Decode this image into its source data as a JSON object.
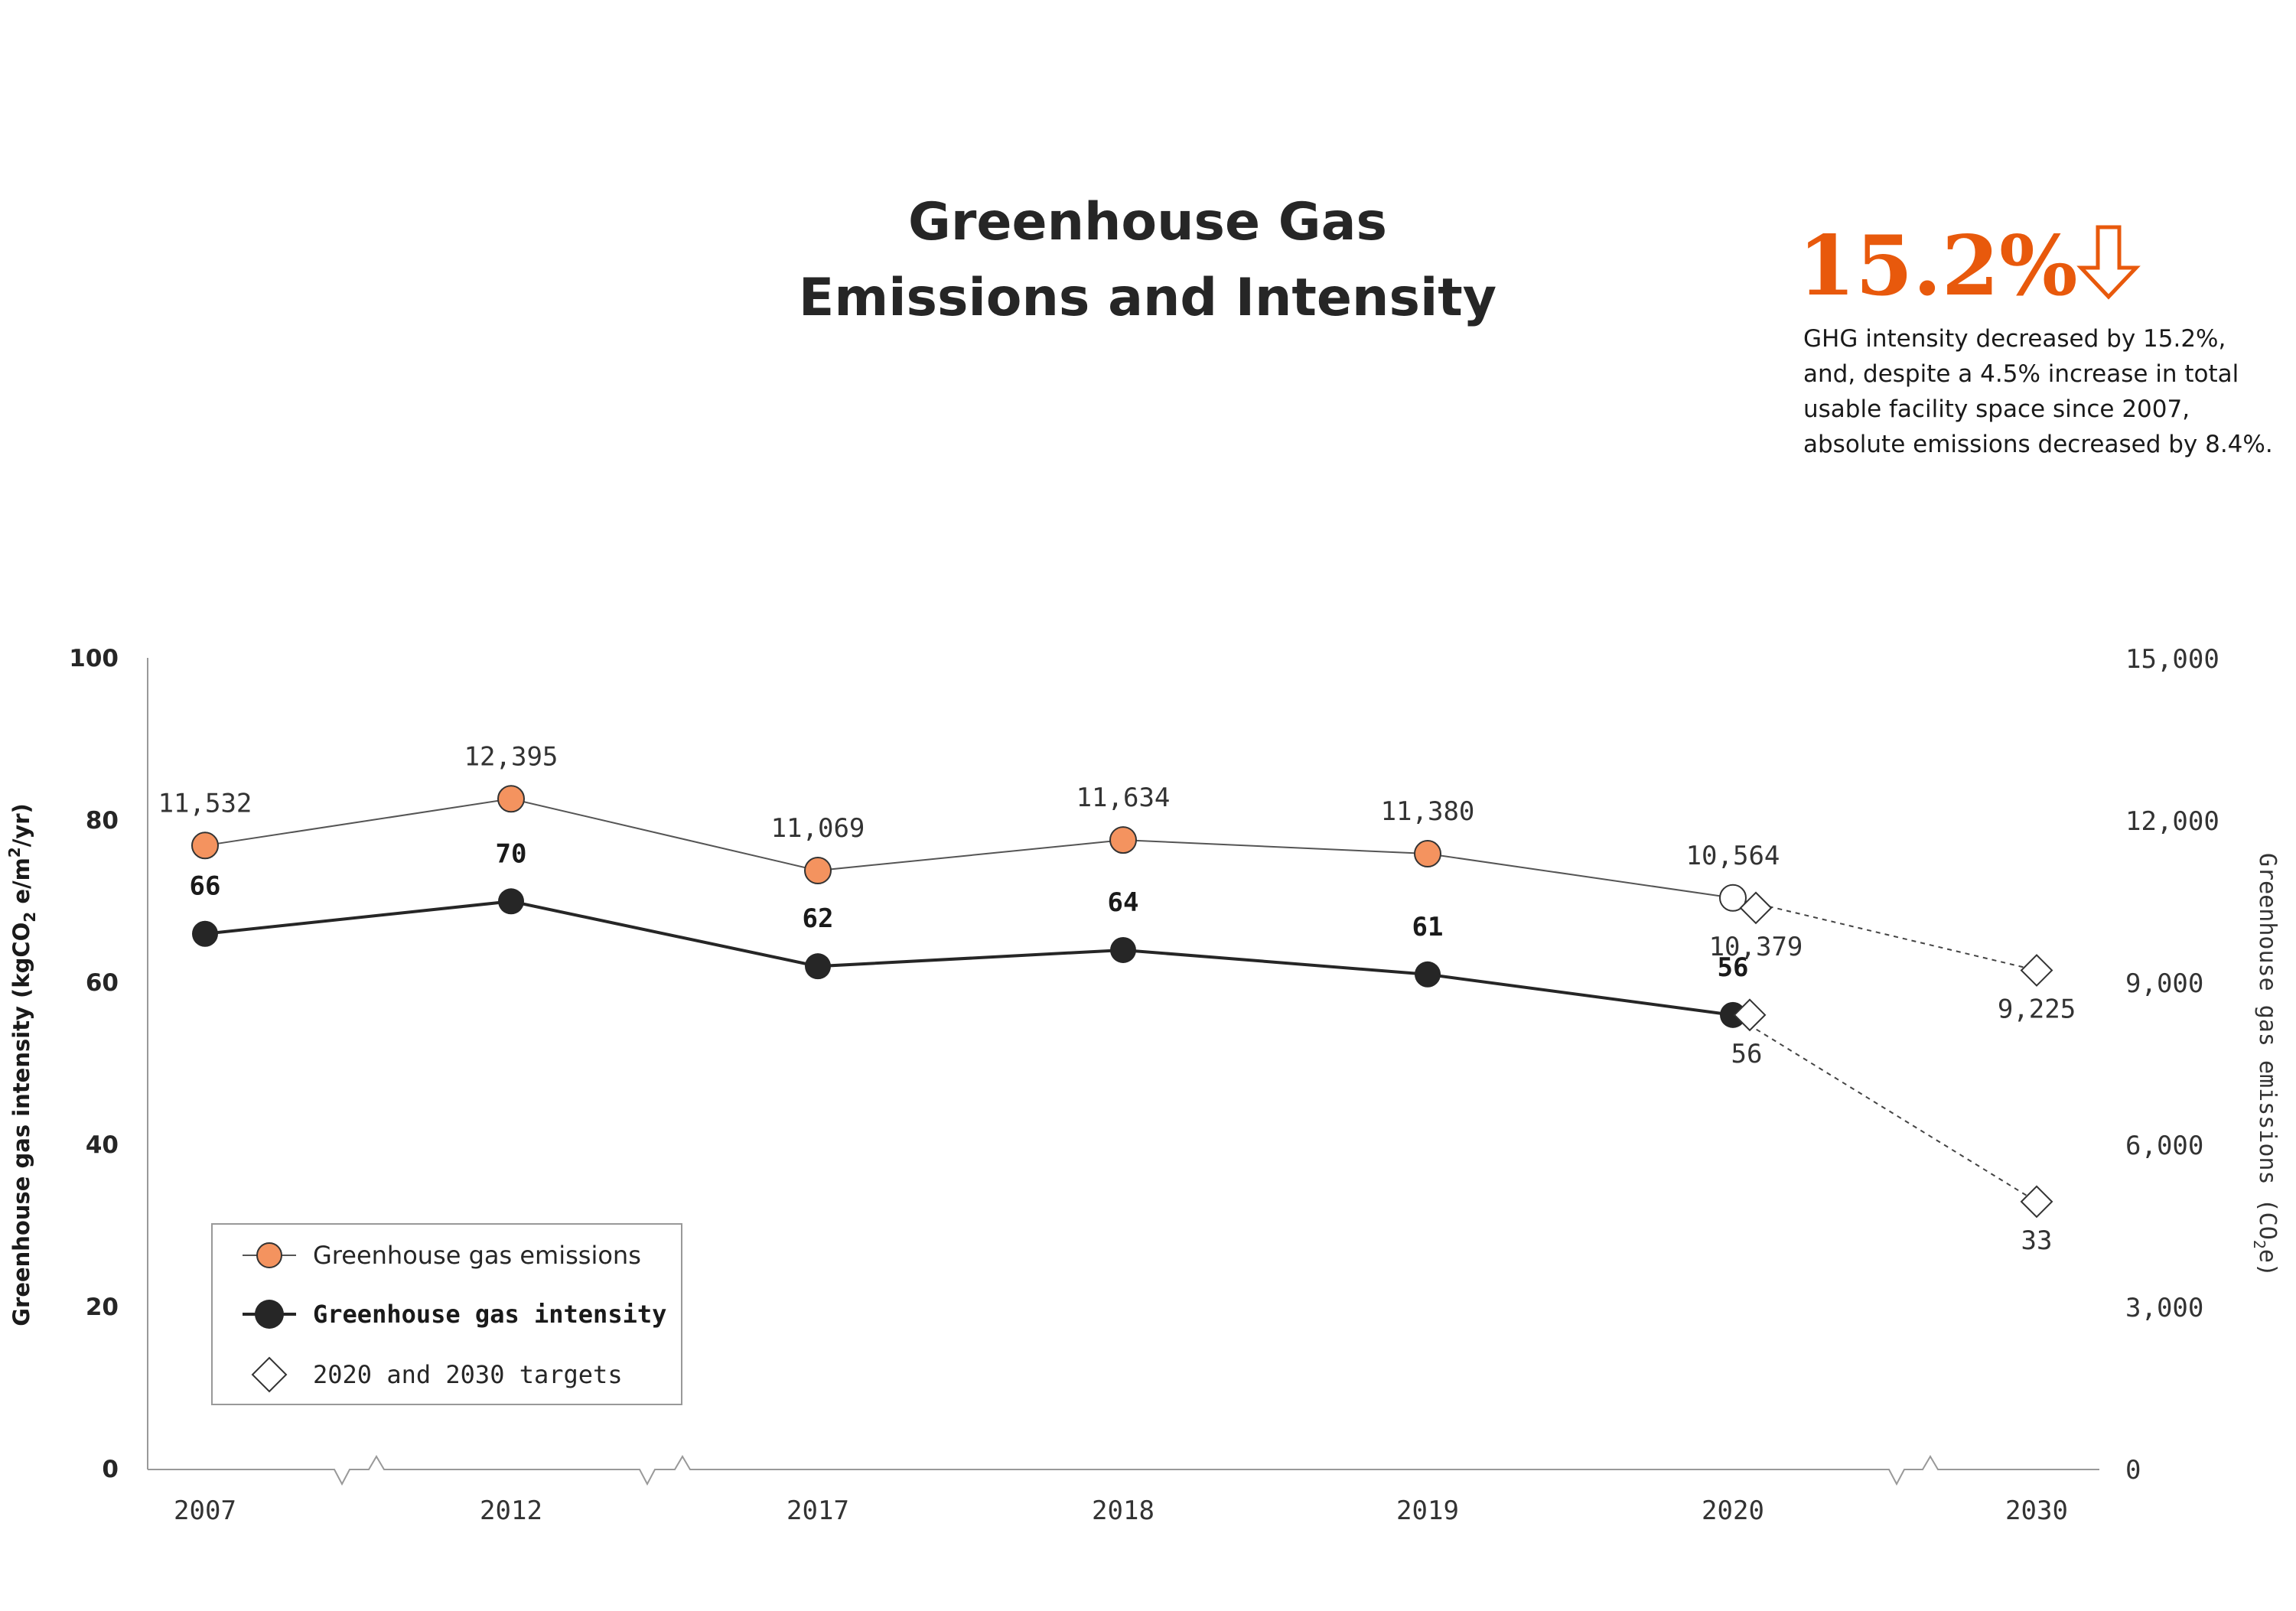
{
  "title_line1": "Greenhouse Gas",
  "title_line2": "Emissions and Intensity",
  "highlight": {
    "value": "15.2%",
    "arrow_icon": "down-arrow-icon",
    "color": "#e8590c",
    "text_lines": [
      "GHG intensity decreased by 15.2%,",
      "and, despite a 4.5% increase in total",
      "usable facility space since 2007,",
      "absolute emissions decreased by 8.4%."
    ]
  },
  "chart_data": {
    "type": "line",
    "categories": [
      "2007",
      "2012",
      "2017",
      "2018",
      "2019",
      "2020",
      "2030"
    ],
    "axis_breaks_after": [
      "2007",
      "2012",
      "2020"
    ],
    "y_left": {
      "label": "Greenhouse gas intensity (kgCO",
      "label_sub": "2",
      "label_mid": " e/m",
      "label_sup": "2",
      "label_end": "/yr)",
      "range": [
        0,
        100
      ],
      "ticks": [
        "0",
        "20",
        "40",
        "60",
        "80",
        "100"
      ]
    },
    "y_right": {
      "label": "Greenhouse gas emissions (CO",
      "label_sub": "2",
      "label_end": "e)",
      "range": [
        0,
        15000
      ],
      "ticks": [
        "0",
        "3,000",
        "6,000",
        "9,000",
        "12,000",
        "15,000"
      ]
    },
    "series": [
      {
        "name": "Greenhouse gas emissions",
        "axis": "right",
        "color": "#f4935f",
        "points": [
          {
            "x": "2007",
            "y": 11532,
            "label": "11,532"
          },
          {
            "x": "2012",
            "y": 12395,
            "label": "12,395"
          },
          {
            "x": "2017",
            "y": 11069,
            "label": "11,069"
          },
          {
            "x": "2018",
            "y": 11634,
            "label": "11,634"
          },
          {
            "x": "2019",
            "y": 11380,
            "label": "11,380"
          },
          {
            "x": "2020",
            "y": 10564,
            "label": "10,564"
          }
        ]
      },
      {
        "name": "Greenhouse gas intensity",
        "axis": "left",
        "color": "#262626",
        "points": [
          {
            "x": "2007",
            "y": 66,
            "label": "66"
          },
          {
            "x": "2012",
            "y": 70,
            "label": "70"
          },
          {
            "x": "2017",
            "y": 62,
            "label": "62"
          },
          {
            "x": "2018",
            "y": 64,
            "label": "64"
          },
          {
            "x": "2019",
            "y": 61,
            "label": "61"
          },
          {
            "x": "2020",
            "y": 56,
            "label": "56"
          }
        ]
      }
    ],
    "targets": {
      "name": "2020 and 2030 targets",
      "emissions": [
        {
          "x": "2020",
          "y": 10379,
          "label": "10,379"
        },
        {
          "x": "2030",
          "y": 9225,
          "label": "9,225"
        }
      ],
      "intensity": [
        {
          "x": "2020",
          "y": 56,
          "label": "56"
        },
        {
          "x": "2030",
          "y": 33,
          "label": "33"
        }
      ]
    },
    "legend": {
      "position": "bottom-left",
      "items": [
        "Greenhouse gas emissions",
        "Greenhouse gas intensity",
        "2020 and 2030 targets"
      ]
    }
  }
}
